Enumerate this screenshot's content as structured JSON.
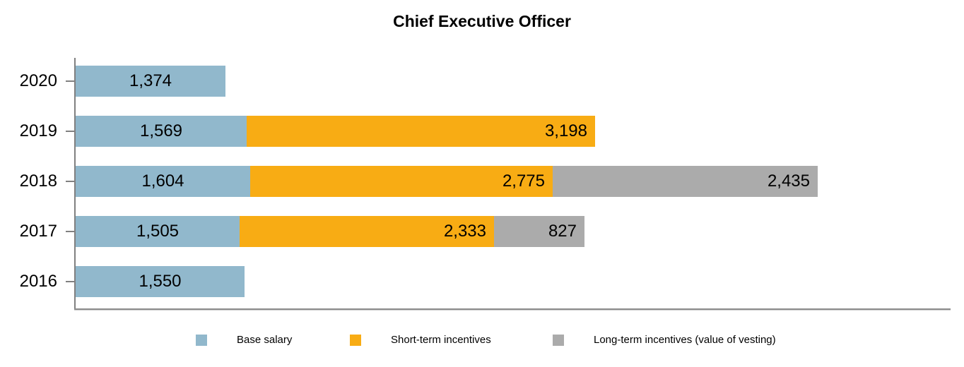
{
  "chart_data": {
    "type": "bar",
    "orientation": "horizontal",
    "stacked": true,
    "title": "Chief Executive Officer",
    "categories": [
      "2020",
      "2019",
      "2018",
      "2017",
      "2016"
    ],
    "series": [
      {
        "name": "Base salary",
        "color": "#91B8CC",
        "values": [
          1374,
          1569,
          1604,
          1505,
          1550
        ],
        "label_position": "inside-center"
      },
      {
        "name": "Short-term incentives",
        "color": "#F8AC14",
        "values": [
          null,
          3198,
          2775,
          2333,
          null
        ],
        "label_position": "inside-end"
      },
      {
        "name": "Long-term incentives (value of vesting)",
        "color": "#ABABAB",
        "values": [
          null,
          null,
          2435,
          827,
          null
        ],
        "label_position": "inside-end"
      }
    ],
    "totals": [
      1374,
      4767,
      6814,
      4665,
      1550
    ],
    "value_label_format": "thousands-comma",
    "xlim": [
      0,
      8030
    ],
    "grid": false,
    "legend_position": "bottom",
    "axis_color": "#808080",
    "text_color": "#000000",
    "background_color": "#FFFFFF"
  }
}
